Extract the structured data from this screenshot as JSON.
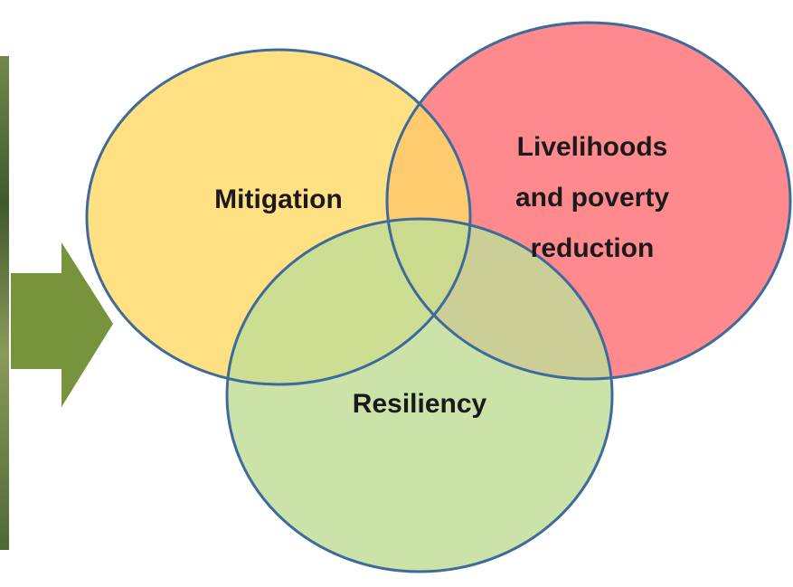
{
  "circles": [
    {
      "label": [
        "Mitigation"
      ]
    },
    {
      "label": [
        "Livelihoods",
        "and poverty",
        "reduction"
      ]
    },
    {
      "label": [
        "Resiliency"
      ]
    }
  ]
}
